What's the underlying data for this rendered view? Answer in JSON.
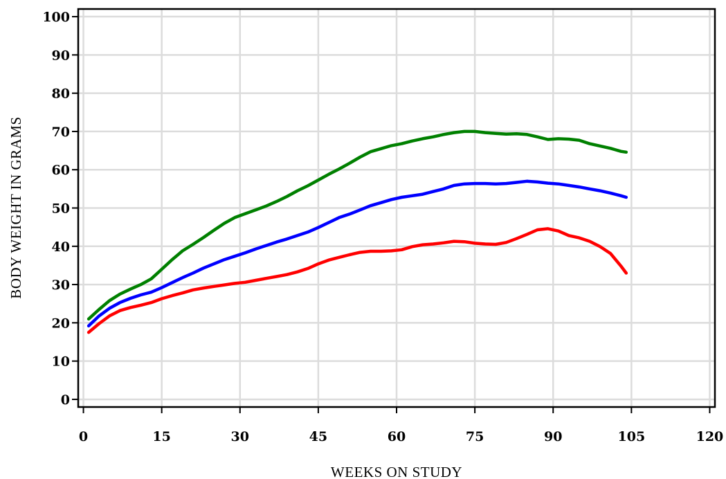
{
  "chart_data": {
    "type": "line",
    "xlabel": "WEEKS ON STUDY",
    "ylabel": "BODY WEIGHT IN GRAMS",
    "xlim": [
      -1,
      121
    ],
    "ylim": [
      -2,
      102
    ],
    "xticks": [
      0,
      15,
      30,
      45,
      60,
      75,
      90,
      105,
      120
    ],
    "yticks": [
      0,
      10,
      20,
      30,
      40,
      50,
      60,
      70,
      80,
      90,
      100
    ],
    "grid": true,
    "series": [
      {
        "color": "#008000",
        "points": [
          [
            1,
            21
          ],
          [
            3,
            23.5
          ],
          [
            5,
            25.8
          ],
          [
            7,
            27.5
          ],
          [
            9,
            28.8
          ],
          [
            11,
            30
          ],
          [
            13,
            31.5
          ],
          [
            15,
            34
          ],
          [
            17,
            36.5
          ],
          [
            19,
            38.8
          ],
          [
            21,
            40.5
          ],
          [
            23,
            42.3
          ],
          [
            25,
            44.2
          ],
          [
            27,
            46
          ],
          [
            29,
            47.5
          ],
          [
            31,
            48.5
          ],
          [
            33,
            49.5
          ],
          [
            35,
            50.5
          ],
          [
            37,
            51.7
          ],
          [
            39,
            53
          ],
          [
            41,
            54.5
          ],
          [
            43,
            55.8
          ],
          [
            45,
            57.3
          ],
          [
            47,
            58.8
          ],
          [
            49,
            60.2
          ],
          [
            51,
            61.7
          ],
          [
            53,
            63.3
          ],
          [
            55,
            64.7
          ],
          [
            57,
            65.5
          ],
          [
            59,
            66.3
          ],
          [
            61,
            66.8
          ],
          [
            63,
            67.5
          ],
          [
            65,
            68.1
          ],
          [
            67,
            68.6
          ],
          [
            69,
            69.2
          ],
          [
            71,
            69.7
          ],
          [
            73,
            70
          ],
          [
            75,
            70
          ],
          [
            77,
            69.7
          ],
          [
            79,
            69.5
          ],
          [
            81,
            69.3
          ],
          [
            83,
            69.4
          ],
          [
            85,
            69.2
          ],
          [
            87,
            68.6
          ],
          [
            89,
            67.9
          ],
          [
            91,
            68.1
          ],
          [
            93,
            68
          ],
          [
            95,
            67.7
          ],
          [
            97,
            66.8
          ],
          [
            99,
            66.2
          ],
          [
            101,
            65.6
          ],
          [
            103,
            64.8
          ],
          [
            104,
            64.6
          ]
        ]
      },
      {
        "color": "#0000ff",
        "points": [
          [
            1,
            19.2
          ],
          [
            3,
            21.8
          ],
          [
            5,
            23.8
          ],
          [
            7,
            25.3
          ],
          [
            9,
            26.4
          ],
          [
            11,
            27.3
          ],
          [
            13,
            28
          ],
          [
            15,
            29.2
          ],
          [
            17,
            30.5
          ],
          [
            19,
            31.8
          ],
          [
            21,
            33
          ],
          [
            23,
            34.3
          ],
          [
            25,
            35.4
          ],
          [
            27,
            36.5
          ],
          [
            29,
            37.4
          ],
          [
            31,
            38.3
          ],
          [
            33,
            39.3
          ],
          [
            35,
            40.2
          ],
          [
            37,
            41.1
          ],
          [
            39,
            41.9
          ],
          [
            41,
            42.8
          ],
          [
            43,
            43.7
          ],
          [
            45,
            44.9
          ],
          [
            47,
            46.2
          ],
          [
            49,
            47.5
          ],
          [
            51,
            48.4
          ],
          [
            53,
            49.5
          ],
          [
            55,
            50.6
          ],
          [
            57,
            51.4
          ],
          [
            59,
            52.2
          ],
          [
            61,
            52.8
          ],
          [
            63,
            53.2
          ],
          [
            65,
            53.6
          ],
          [
            67,
            54.3
          ],
          [
            69,
            55
          ],
          [
            71,
            55.9
          ],
          [
            73,
            56.3
          ],
          [
            75,
            56.4
          ],
          [
            77,
            56.4
          ],
          [
            79,
            56.3
          ],
          [
            81,
            56.4
          ],
          [
            83,
            56.7
          ],
          [
            85,
            57
          ],
          [
            87,
            56.8
          ],
          [
            89,
            56.5
          ],
          [
            91,
            56.3
          ],
          [
            93,
            55.9
          ],
          [
            95,
            55.5
          ],
          [
            97,
            55
          ],
          [
            99,
            54.5
          ],
          [
            101,
            53.9
          ],
          [
            103,
            53.2
          ],
          [
            104,
            52.8
          ]
        ]
      },
      {
        "color": "#ff0000",
        "points": [
          [
            1,
            17.5
          ],
          [
            3,
            19.8
          ],
          [
            5,
            21.8
          ],
          [
            7,
            23.2
          ],
          [
            9,
            24
          ],
          [
            11,
            24.6
          ],
          [
            13,
            25.3
          ],
          [
            15,
            26.3
          ],
          [
            17,
            27.1
          ],
          [
            19,
            27.8
          ],
          [
            21,
            28.6
          ],
          [
            23,
            29.1
          ],
          [
            25,
            29.5
          ],
          [
            27,
            29.9
          ],
          [
            29,
            30.3
          ],
          [
            31,
            30.6
          ],
          [
            33,
            31.1
          ],
          [
            35,
            31.6
          ],
          [
            37,
            32.1
          ],
          [
            39,
            32.6
          ],
          [
            41,
            33.3
          ],
          [
            43,
            34.2
          ],
          [
            45,
            35.4
          ],
          [
            47,
            36.4
          ],
          [
            49,
            37.1
          ],
          [
            51,
            37.8
          ],
          [
            53,
            38.4
          ],
          [
            55,
            38.7
          ],
          [
            57,
            38.7
          ],
          [
            59,
            38.8
          ],
          [
            61,
            39.1
          ],
          [
            63,
            39.9
          ],
          [
            65,
            40.4
          ],
          [
            67,
            40.6
          ],
          [
            69,
            40.9
          ],
          [
            71,
            41.3
          ],
          [
            73,
            41.2
          ],
          [
            75,
            40.8
          ],
          [
            77,
            40.6
          ],
          [
            79,
            40.5
          ],
          [
            81,
            41
          ],
          [
            83,
            42
          ],
          [
            85,
            43.1
          ],
          [
            87,
            44.3
          ],
          [
            89,
            44.6
          ],
          [
            91,
            44
          ],
          [
            93,
            42.8
          ],
          [
            95,
            42.2
          ],
          [
            97,
            41.3
          ],
          [
            99,
            39.9
          ],
          [
            101,
            38.1
          ],
          [
            103,
            34.8
          ],
          [
            104,
            33
          ]
        ]
      }
    ]
  }
}
